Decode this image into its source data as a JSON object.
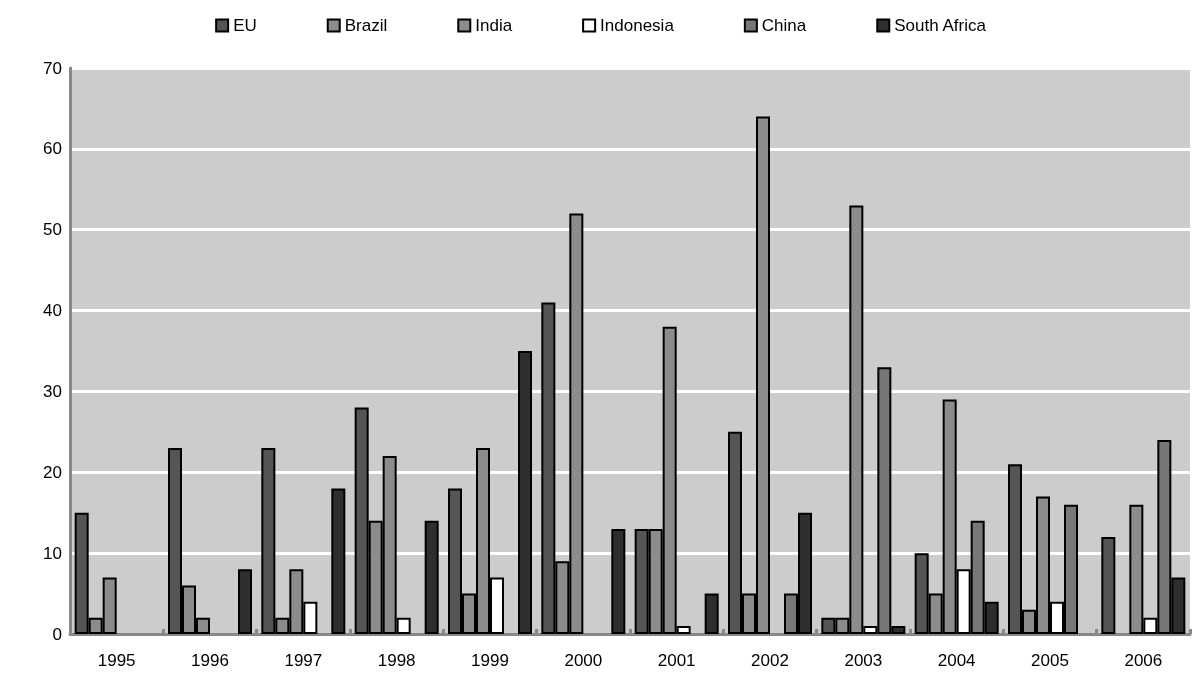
{
  "chart_data": {
    "type": "bar",
    "categories": [
      "1995",
      "1996",
      "1997",
      "1998",
      "1999",
      "2000",
      "2001",
      "2002",
      "2003",
      "2004",
      "2005",
      "2006"
    ],
    "series": [
      {
        "name": "EU",
        "color": "#555555",
        "values": [
          15,
          23,
          23,
          28,
          18,
          41,
          13,
          25,
          2,
          10,
          21,
          12
        ]
      },
      {
        "name": "Brazil",
        "color": "#8c8c8c",
        "values": [
          2,
          6,
          2,
          14,
          5,
          9,
          13,
          5,
          2,
          5,
          3,
          0
        ]
      },
      {
        "name": "India",
        "color": "#8c8c8c",
        "values": [
          7,
          2,
          8,
          22,
          23,
          52,
          38,
          64,
          53,
          29,
          17,
          16
        ]
      },
      {
        "name": "Indonesia",
        "color": "#ffffff",
        "values": [
          0,
          0,
          4,
          2,
          7,
          0,
          1,
          0,
          1,
          8,
          4,
          2
        ]
      },
      {
        "name": "China",
        "color": "#777777",
        "values": [
          0,
          0,
          0,
          0,
          0,
          0,
          0,
          5,
          33,
          14,
          16,
          24
        ]
      },
      {
        "name": "South Africa",
        "color": "#2e2e2e",
        "values": [
          0,
          8,
          18,
          14,
          35,
          13,
          5,
          15,
          1,
          4,
          0,
          7
        ]
      }
    ],
    "ylim": [
      0,
      70
    ],
    "yticks": [
      0,
      10,
      20,
      30,
      40,
      50,
      60,
      70
    ],
    "grid": "y",
    "legend": "top"
  }
}
